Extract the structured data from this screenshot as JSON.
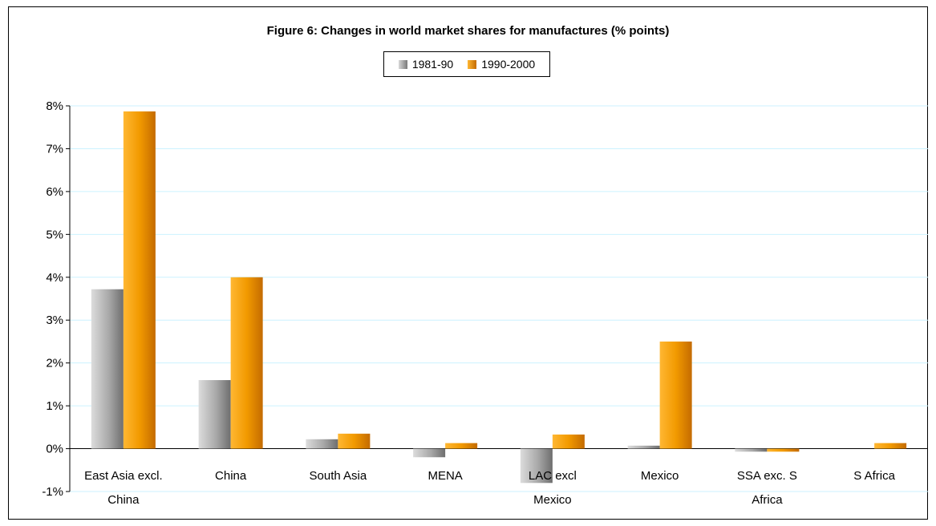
{
  "chart_data": {
    "type": "bar",
    "title": "Figure 6: Changes in world market shares for manufactures (% points)",
    "categories": [
      [
        "East Asia excl.",
        "China"
      ],
      [
        "China"
      ],
      [
        "South Asia"
      ],
      [
        "MENA"
      ],
      [
        "LAC excl",
        "Mexico"
      ],
      [
        "Mexico"
      ],
      [
        "SSA exc. S",
        "Africa"
      ],
      [
        "S Africa"
      ]
    ],
    "series": [
      {
        "name": "1981-90",
        "values": [
          3.72,
          1.6,
          0.22,
          -0.2,
          -0.8,
          0.07,
          -0.07,
          0.0
        ]
      },
      {
        "name": "1990-2000",
        "values": [
          7.87,
          4.0,
          0.35,
          0.13,
          0.33,
          2.5,
          -0.07,
          0.13
        ]
      }
    ],
    "ylim": [
      -1,
      8
    ],
    "yticks": [
      "8%",
      "7%",
      "6%",
      "5%",
      "4%",
      "3%",
      "2%",
      "1%",
      "0%",
      "-1%"
    ],
    "ytick_values": [
      8,
      7,
      6,
      5,
      4,
      3,
      2,
      1,
      0,
      -1
    ],
    "grid": true,
    "legend_position": "top-center",
    "colors": {
      "series1": "#9a9a9a",
      "series2": "#f29a00",
      "grid": "#ccf2ff"
    }
  }
}
